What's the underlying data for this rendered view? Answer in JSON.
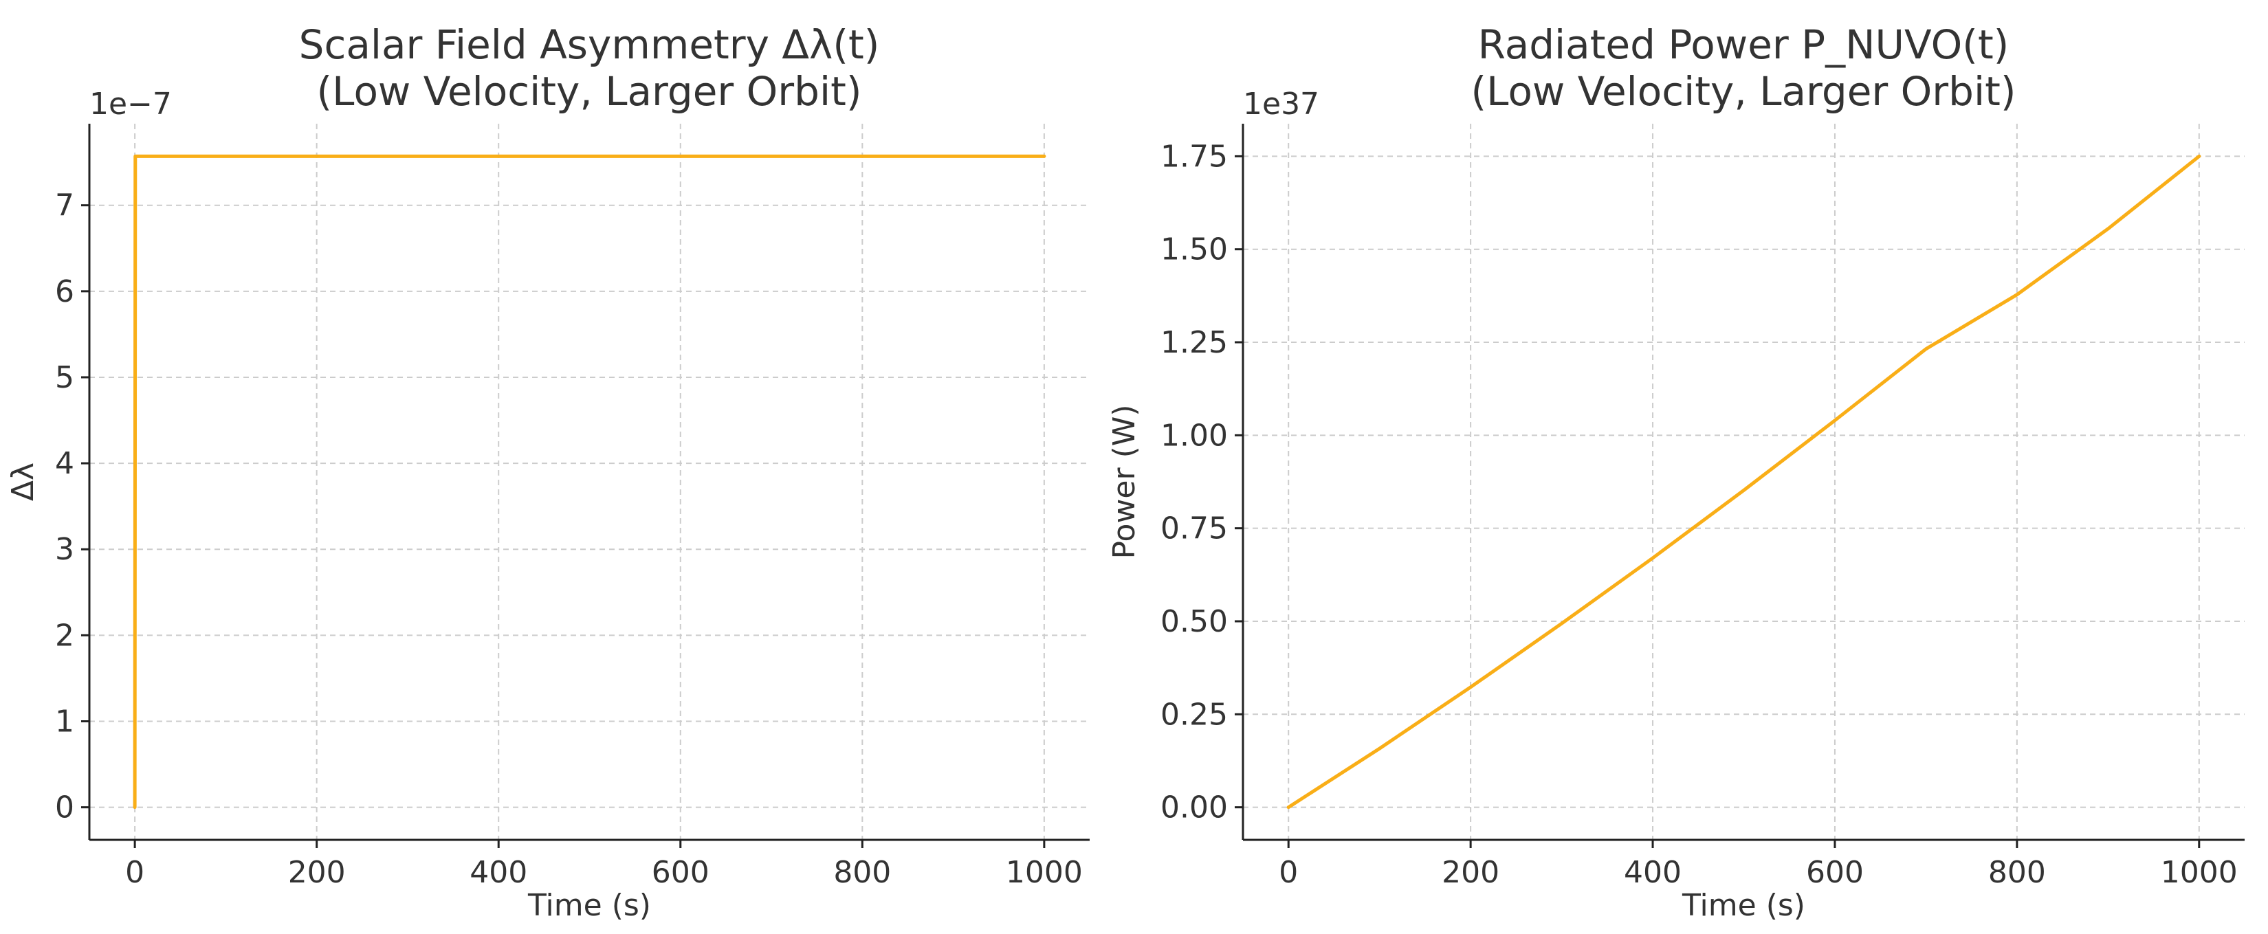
{
  "chart_data": [
    {
      "type": "line",
      "title": "Scalar Field Asymmetry Δλ(t)\n(Low Velocity, Larger Orbit)",
      "xlabel": "Time (s)",
      "ylabel": "Δλ",
      "offset_label": "1e−7",
      "xlim": [
        -50,
        1050
      ],
      "ylim": [
        -0.3785,
        7.9485
      ],
      "xticks": [
        0,
        200,
        400,
        600,
        800,
        1000
      ],
      "xtick_labels": [
        "0",
        "200",
        "400",
        "600",
        "800",
        "1000"
      ],
      "yticks": [
        0,
        1,
        2,
        3,
        4,
        5,
        6,
        7
      ],
      "ytick_labels": [
        "0",
        "1",
        "2",
        "3",
        "4",
        "5",
        "6",
        "7"
      ],
      "grid": true,
      "series": [
        {
          "color": "#F9AE17",
          "x": [
            0,
            0.5,
            1,
            100,
            200,
            300,
            400,
            500,
            600,
            700,
            800,
            900,
            1000
          ],
          "y": [
            0,
            7.57,
            7.57,
            7.57,
            7.57,
            7.57,
            7.57,
            7.57,
            7.57,
            7.57,
            7.57,
            7.57,
            7.57
          ]
        }
      ]
    },
    {
      "type": "line",
      "title": "Radiated Power P_NUVO(t)\n(Low Velocity, Larger Orbit)",
      "xlabel": "Time (s)",
      "ylabel": "Power (W)",
      "offset_label": "1e37",
      "xlim": [
        -50,
        1050
      ],
      "ylim": [
        -0.0875,
        1.8375
      ],
      "xticks": [
        0,
        200,
        400,
        600,
        800,
        1000
      ],
      "xtick_labels": [
        "0",
        "200",
        "400",
        "600",
        "800",
        "1000"
      ],
      "yticks": [
        0,
        0.25,
        0.5,
        0.75,
        1.0,
        1.25,
        1.5,
        1.75
      ],
      "ytick_labels": [
        "0.00",
        "0.25",
        "0.50",
        "0.75",
        "1.00",
        "1.25",
        "1.50",
        "1.75"
      ],
      "grid": true,
      "series": [
        {
          "color": "#F9AE17",
          "x": [
            0,
            100,
            200,
            300,
            400,
            500,
            600,
            700,
            800,
            900,
            1000
          ],
          "y": [
            0,
            0.158,
            0.323,
            0.494,
            0.67,
            0.852,
            1.04,
            1.232,
            1.378,
            1.555,
            1.75
          ]
        }
      ]
    }
  ]
}
